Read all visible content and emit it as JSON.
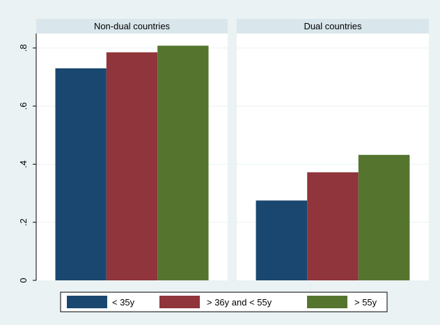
{
  "chart_data": {
    "type": "bar",
    "panels": [
      {
        "title": "Non-dual countries",
        "series_values": [
          0.73,
          0.785,
          0.808
        ]
      },
      {
        "title": "Dual countries",
        "series_values": [
          0.275,
          0.372,
          0.432
        ]
      }
    ],
    "series": [
      {
        "name": "< 35y",
        "color": "#1a476f"
      },
      {
        "name": "> 36y and < 55y",
        "color": "#90353b"
      },
      {
        "name": "> 55y",
        "color": "#55752f"
      }
    ],
    "yticks": [
      0,
      0.2,
      0.4,
      0.6,
      0.8
    ],
    "ytick_labels": [
      "0",
      ".2",
      ".4",
      ".6",
      ".8"
    ],
    "ylim": [
      0,
      0.85
    ],
    "xlabel": "",
    "ylabel": "",
    "grid": true,
    "legend_position": "bottom",
    "colors": {
      "background": "#eaf2f3",
      "plot_area": "#ffffff",
      "panel_header": "#d9e6eb",
      "grid": "#eaf2f3",
      "axis": "#000000"
    }
  }
}
